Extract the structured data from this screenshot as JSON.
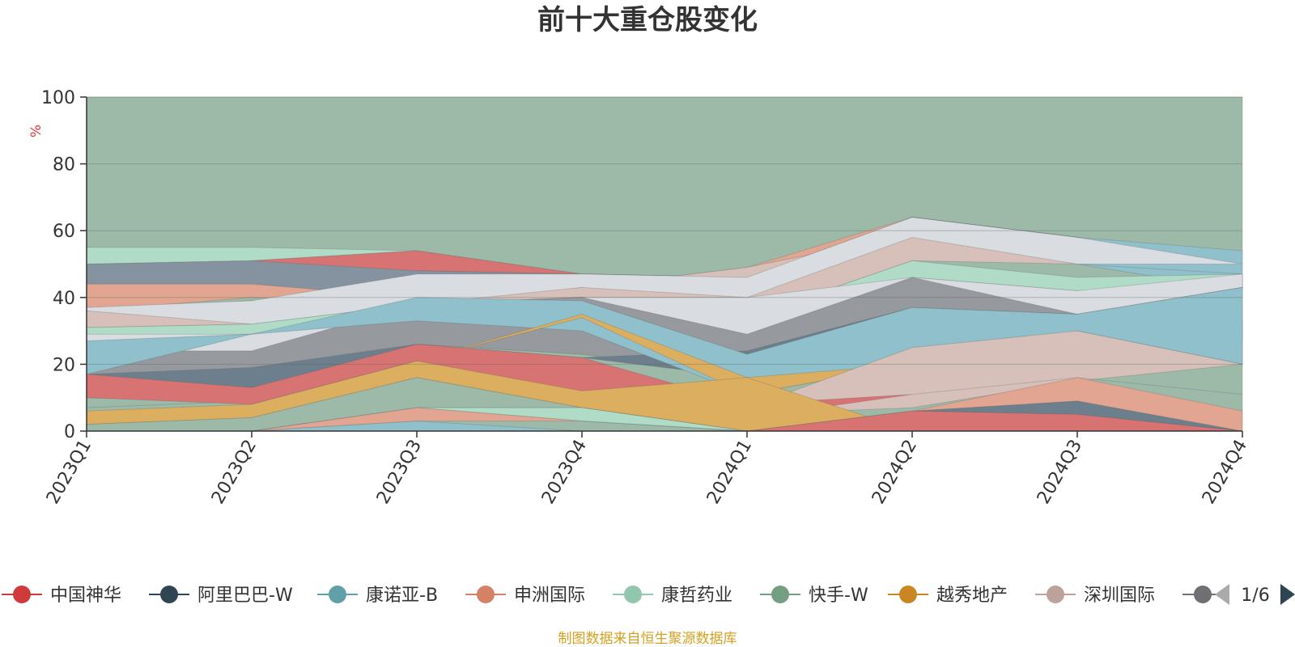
{
  "chart_data": {
    "type": "area",
    "title": "前十大重仓股变化",
    "ylabel": "%",
    "ylim": [
      0,
      100
    ],
    "y_ticks": [
      0,
      20,
      40,
      60,
      80,
      100
    ],
    "x": [
      "2023Q1",
      "2023Q2",
      "2023Q3",
      "2023Q4",
      "2024Q1",
      "2024Q2",
      "2024Q3",
      "2024Q4"
    ],
    "bands": [
      {
        "name": "快手-W (背景)",
        "color": "#9dbaa9",
        "lower": [
          0,
          0,
          0,
          0,
          0,
          0,
          0,
          0
        ],
        "upper": [
          100,
          100,
          100,
          100,
          100,
          100,
          100,
          100
        ]
      },
      {
        "name": "阿里巴巴-W",
        "color": "#6d7f8c",
        "lower": [
          50,
          51,
          48,
          47,
          46,
          64,
          58,
          50
        ],
        "upper": [
          55,
          51,
          48,
          47,
          46,
          64,
          58,
          50
        ]
      },
      {
        "name": "康哲药业",
        "color": "#b0dcc7",
        "lower": [
          50,
          51,
          54,
          47,
          46,
          64,
          58,
          50
        ],
        "upper": [
          55,
          55,
          54,
          47,
          46,
          64,
          58,
          50
        ]
      },
      {
        "name": "中国神华",
        "color": "#d87373",
        "lower": [
          38,
          44,
          48,
          47,
          46,
          64,
          58,
          50
        ],
        "upper": [
          44,
          51,
          54,
          47,
          46,
          64,
          58,
          50
        ]
      },
      {
        "name": "阿里巴巴-W 2",
        "color": "#8593a0",
        "lower": [
          44,
          43,
          40,
          43,
          40,
          64,
          58,
          50
        ],
        "upper": [
          50,
          51,
          48,
          47,
          46,
          64,
          58,
          50
        ]
      },
      {
        "name": "申洲国际",
        "color": "#e2a591",
        "lower": [
          36,
          40,
          38,
          43,
          40,
          64,
          58,
          50
        ],
        "upper": [
          44,
          44,
          40,
          43,
          49,
          64,
          58,
          50
        ]
      },
      {
        "name": "康诺亚-B",
        "color": "#8fc0cb",
        "lower": [
          36,
          39,
          38,
          40,
          40,
          60,
          50,
          42
        ],
        "upper": [
          36,
          39,
          40,
          43,
          46,
          64,
          58,
          54
        ]
      },
      {
        "name": "深圳国际",
        "color": "#d6c0b9",
        "lower": [
          31,
          32,
          38,
          40,
          34,
          51,
          50,
          47
        ],
        "upper": [
          36,
          39,
          40,
          43,
          49,
          59,
          50,
          47
        ]
      },
      {
        "name": "灰白",
        "color": "#d9dce1",
        "lower": [
          36,
          32,
          38,
          43,
          40,
          58,
          50,
          50
        ],
        "upper": [
          37,
          39,
          47,
          47,
          46,
          64,
          58,
          50
        ]
      },
      {
        "name": "康哲药业 2",
        "color": "#b0dcc7",
        "lower": [
          28,
          29,
          38,
          40,
          29,
          46,
          42,
          43
        ],
        "upper": [
          31,
          32,
          38,
          40,
          34,
          51,
          46,
          47
        ]
      },
      {
        "name": "灰白 2",
        "color": "#d9dce1",
        "lower": [
          24,
          16,
          26,
          23,
          24,
          37,
          35,
          43
        ],
        "upper": [
          29,
          29,
          38,
          40,
          40,
          46,
          42,
          47
        ]
      },
      {
        "name": "深灰",
        "color": "#96999e",
        "lower": [
          16,
          16,
          26,
          23,
          16,
          26,
          30,
          27
        ],
        "upper": [
          24,
          24,
          38,
          40,
          29,
          46,
          35,
          43
        ]
      },
      {
        "name": "阿里巴巴-W 3",
        "color": "#6d7f8c",
        "lower": [
          13,
          13,
          21,
          22,
          16,
          26,
          30,
          20
        ],
        "upper": [
          17,
          19,
          26,
          22,
          24,
          37,
          35,
          33
        ]
      },
      {
        "name": "康诺亚-B 2",
        "color": "#8fc0cb",
        "lower": [
          17,
          29,
          33,
          30,
          11,
          20,
          27,
          20
        ],
        "upper": [
          27,
          29,
          40,
          39,
          23,
          37,
          35,
          43
        ]
      },
      {
        "name": "越秀地产",
        "color": "#dcae5f",
        "lower": [
          7,
          9,
          21,
          34,
          11,
          20,
          30,
          20
        ],
        "upper": [
          7,
          9,
          21,
          35,
          16,
          20,
          30,
          20
        ]
      },
      {
        "name": "深圳国际 2",
        "color": "#d6c0b9",
        "lower": [
          10,
          9,
          21,
          12,
          5,
          7,
          15,
          20
        ],
        "upper": [
          10,
          9,
          21,
          22,
          7,
          25,
          30,
          20
        ]
      },
      {
        "name": "中国神华 2",
        "color": "#d87373",
        "lower": [
          10,
          8,
          21,
          7,
          4,
          11,
          16,
          11
        ],
        "upper": [
          17,
          13,
          26,
          22,
          8,
          11,
          16,
          11
        ]
      },
      {
        "name": "越秀地产 2",
        "color": "#dcae5f",
        "lower": [
          2,
          4,
          16,
          7,
          0,
          0,
          0,
          0
        ],
        "upper": [
          6,
          8,
          21,
          12,
          16,
          0,
          0,
          0
        ]
      },
      {
        "name": "快手-W 2",
        "color": "#9dbaa9",
        "lower": [
          0,
          0,
          7,
          7,
          0,
          0,
          0,
          0
        ],
        "upper": [
          2,
          4,
          16,
          7,
          0,
          0,
          0,
          0
        ]
      },
      {
        "name": "康哲药业 3",
        "color": "#b0dcc7",
        "lower": [
          0,
          0,
          7,
          3,
          0,
          0,
          0,
          0
        ],
        "upper": [
          0,
          0,
          7,
          7,
          0,
          0,
          0,
          0
        ]
      },
      {
        "name": "申洲国际 2",
        "color": "#e2a591",
        "lower": [
          0,
          0,
          3,
          3,
          0,
          6,
          5,
          0
        ],
        "upper": [
          0,
          0,
          7,
          3,
          0,
          6,
          16,
          6
        ]
      },
      {
        "name": "康诺亚-B 3",
        "color": "#8fc0cb",
        "lower": [
          0,
          0,
          0,
          0,
          0,
          0,
          0,
          0
        ],
        "upper": [
          0,
          0,
          3,
          0,
          0,
          0,
          0,
          0
        ]
      },
      {
        "name": "阿里巴巴-W 4",
        "color": "#6d7f8c",
        "lower": [
          0,
          0,
          0,
          0,
          0,
          6,
          5,
          0
        ],
        "upper": [
          0,
          0,
          0,
          0,
          0,
          6,
          9,
          0
        ]
      },
      {
        "name": "中国神华 3",
        "color": "#d87373",
        "lower": [
          0,
          0,
          0,
          0,
          0,
          0,
          0,
          0
        ],
        "upper": [
          0,
          0,
          0,
          0,
          0,
          6,
          5,
          0
        ]
      }
    ],
    "legend": [
      {
        "name": "中国神华",
        "color": "#d03a3a"
      },
      {
        "name": "阿里巴巴-W",
        "color": "#2f4554"
      },
      {
        "name": "康诺亚-B",
        "color": "#61a0a8"
      },
      {
        "name": "申洲国际",
        "color": "#d48265"
      },
      {
        "name": "康哲药业",
        "color": "#91c7ae"
      },
      {
        "name": "快手-W",
        "color": "#749f83"
      },
      {
        "name": "越秀地产",
        "color": "#ca8622"
      },
      {
        "name": "深圳国际",
        "color": "#bda29a"
      },
      {
        "name": "",
        "color": "#6e7074"
      }
    ],
    "legend_page": "1/6",
    "source": "制图数据来自恒生聚源数据库"
  }
}
